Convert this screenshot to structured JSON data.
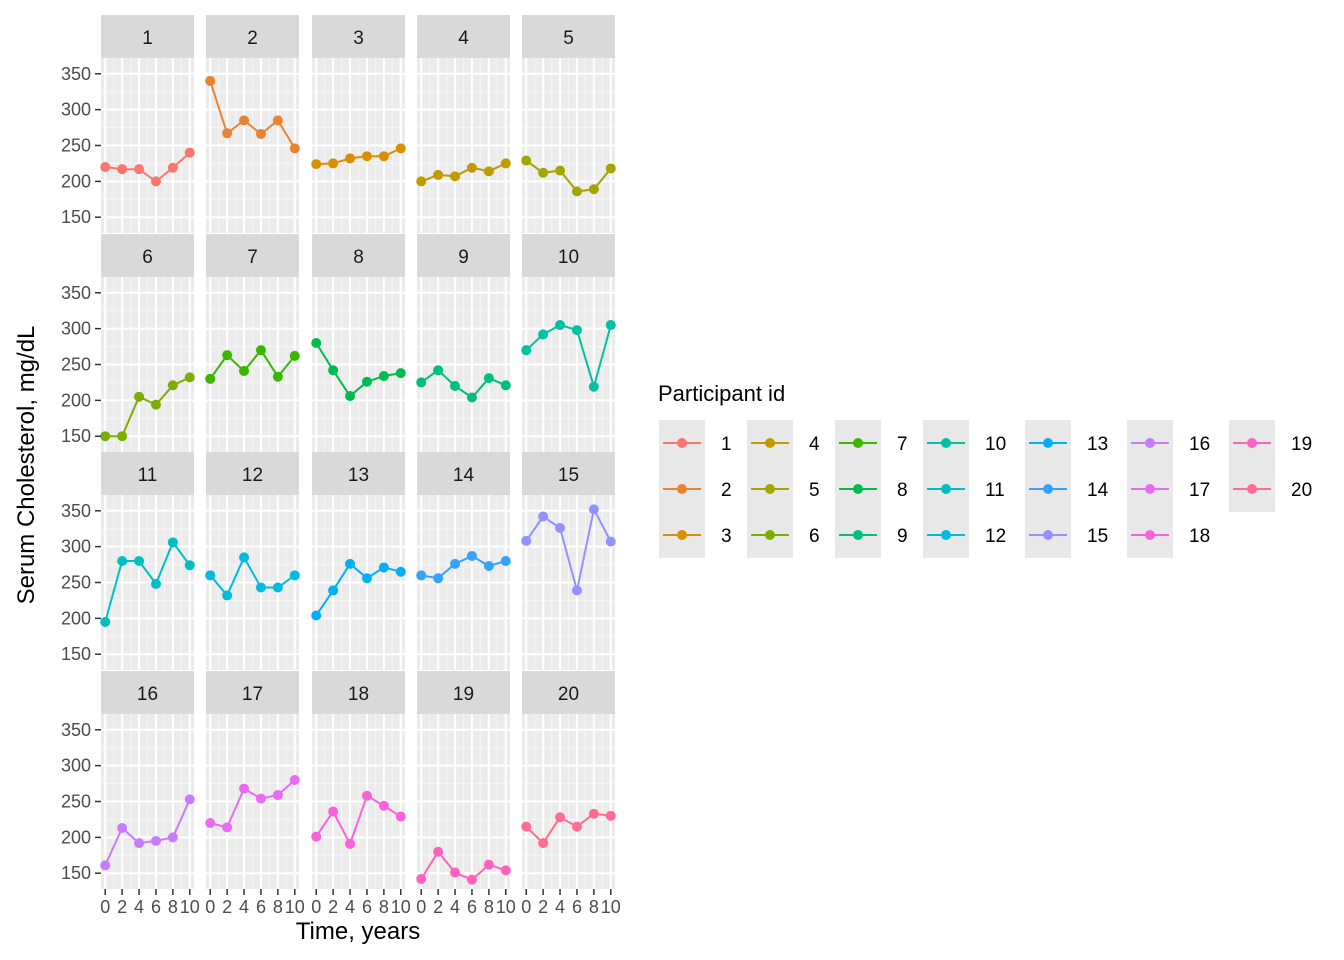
{
  "chart_data": {
    "type": "line",
    "facet": "wrap",
    "facet_cols": 5,
    "xlabel": "Time, years",
    "ylabel": "Serum Cholesterol, mg/dL",
    "x": [
      0,
      2,
      4,
      6,
      8,
      10
    ],
    "xlim": [
      -0.5,
      10.5
    ],
    "ylim": [
      128,
      372
    ],
    "yticks": [
      150,
      200,
      250,
      300,
      350
    ],
    "xticks": [
      0,
      2,
      4,
      6,
      8,
      10
    ],
    "grid": true,
    "legend": {
      "title": "Participant id",
      "placement": "right",
      "ncol": 7
    },
    "series": [
      {
        "name": "1",
        "color": "#F8766D",
        "values": [
          220,
          217,
          217,
          200,
          219,
          240
        ]
      },
      {
        "name": "2",
        "color": "#EA8331",
        "values": [
          340,
          267,
          285,
          266,
          285,
          246
        ]
      },
      {
        "name": "3",
        "color": "#D89000",
        "values": [
          224,
          225,
          232,
          235,
          235,
          246
        ]
      },
      {
        "name": "4",
        "color": "#C09B00",
        "values": [
          200,
          209,
          207,
          219,
          214,
          225
        ]
      },
      {
        "name": "5",
        "color": "#A3A500",
        "values": [
          229,
          212,
          215,
          186,
          189,
          218
        ]
      },
      {
        "name": "6",
        "color": "#7CAE00",
        "values": [
          150,
          150,
          205,
          194,
          221,
          232
        ]
      },
      {
        "name": "7",
        "color": "#39B600",
        "values": [
          230,
          263,
          241,
          270,
          233,
          262
        ]
      },
      {
        "name": "8",
        "color": "#00BB4E",
        "values": [
          280,
          242,
          206,
          226,
          234,
          238
        ]
      },
      {
        "name": "9",
        "color": "#00BF7D",
        "values": [
          225,
          242,
          220,
          204,
          231,
          221
        ]
      },
      {
        "name": "10",
        "color": "#00C1A3",
        "values": [
          270,
          292,
          305,
          298,
          219,
          305
        ]
      },
      {
        "name": "11",
        "color": "#00BFC4",
        "values": [
          195,
          280,
          280,
          248,
          306,
          274
        ]
      },
      {
        "name": "12",
        "color": "#00BAE0",
        "values": [
          260,
          232,
          285,
          243,
          243,
          260
        ]
      },
      {
        "name": "13",
        "color": "#00B0F6",
        "values": [
          204,
          239,
          276,
          256,
          271,
          265
        ]
      },
      {
        "name": "14",
        "color": "#35A2FF",
        "values": [
          260,
          256,
          276,
          287,
          273,
          280
        ]
      },
      {
        "name": "15",
        "color": "#9590FF",
        "values": [
          308,
          342,
          326,
          239,
          352,
          307
        ]
      },
      {
        "name": "16",
        "color": "#C77CFF",
        "values": [
          161,
          213,
          192,
          195,
          200,
          253
        ]
      },
      {
        "name": "17",
        "color": "#E76BF3",
        "values": [
          220,
          214,
          268,
          254,
          259,
          280
        ]
      },
      {
        "name": "18",
        "color": "#FA62DB",
        "values": [
          201,
          236,
          191,
          258,
          244,
          229
        ]
      },
      {
        "name": "19",
        "color": "#FF62BC",
        "values": [
          142,
          180,
          151,
          141,
          162,
          154
        ]
      },
      {
        "name": "20",
        "color": "#FF6C91",
        "values": [
          215,
          192,
          228,
          215,
          233,
          230
        ]
      }
    ]
  }
}
